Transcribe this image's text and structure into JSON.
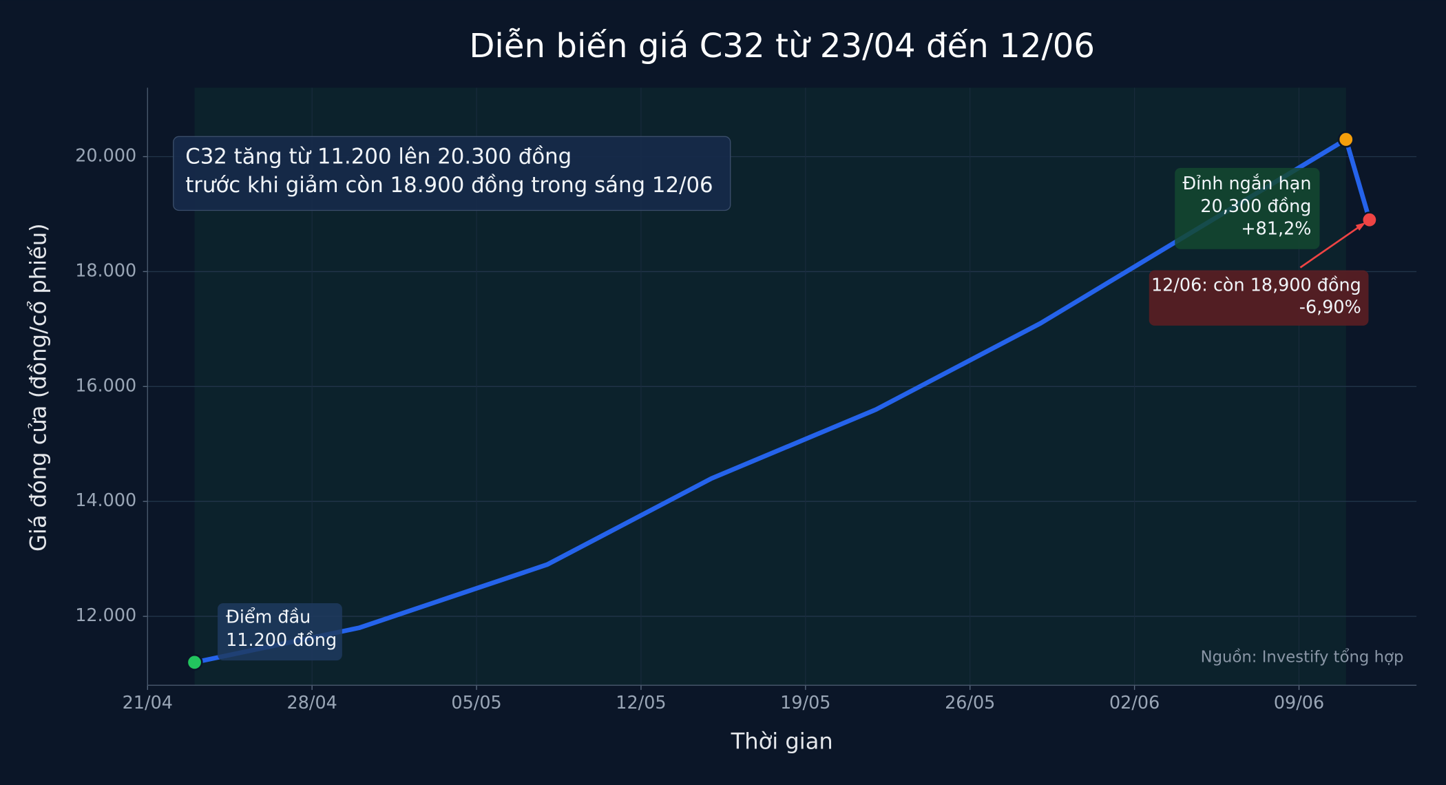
{
  "chart_data": {
    "type": "line",
    "title": "Diễn biến giá C32 từ 23/04 đến 12/06",
    "x_label": "Thời gian",
    "y_label": "Giá đóng cửa (đồng/cổ phiếu)",
    "x": [
      "23/04",
      "30/04",
      "08/05",
      "15/05",
      "22/05",
      "29/05",
      "11/06",
      "12/06"
    ],
    "series": [
      {
        "name": "C32",
        "color": "#2563eb",
        "values": [
          11200,
          11800,
          12900,
          14400,
          15600,
          17100,
          20300,
          18900
        ],
        "markers": [
          "#22c55e",
          null,
          null,
          null,
          null,
          null,
          "#f59e0b",
          "#ef4444"
        ]
      }
    ],
    "xlim": [
      "21/04",
      "14/06"
    ],
    "xticks": [
      "21/04",
      "28/04",
      "05/05",
      "12/05",
      "19/05",
      "26/05",
      "02/06",
      "09/06"
    ],
    "ylim": [
      10800,
      21200
    ],
    "yticks": [
      {
        "value": 12000,
        "label": "12.000"
      },
      {
        "value": 14000,
        "label": "14.000"
      },
      {
        "value": 16000,
        "label": "16.000"
      },
      {
        "value": 18000,
        "label": "18.000"
      },
      {
        "value": 20000,
        "label": "20.000"
      }
    ],
    "grid": true,
    "highlight_span": [
      "23/04",
      "11/06"
    ],
    "annotations": [
      {
        "lines": [
          "C32 tăng từ 11.200 lên 20.300 đồng",
          "trước khi giảm còn 18.900 đồng trong sáng 12/06"
        ]
      },
      {
        "lines": [
          "Điểm đầu",
          "11.200 đồng"
        ]
      },
      {
        "lines": [
          "Đỉnh ngắn hạn",
          "20,300 đồng",
          "+81,2%"
        ]
      },
      {
        "lines": [
          "12/06: còn 18,900 đồng",
          "-6,90%"
        ]
      }
    ],
    "source": "Nguồn: Investify tổng hợp"
  }
}
